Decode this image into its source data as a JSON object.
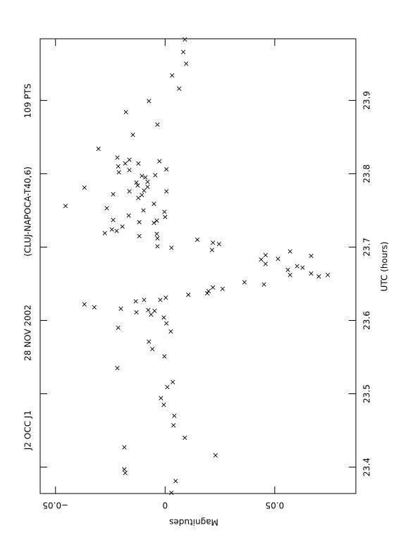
{
  "chart_data": {
    "type": "scatter",
    "title": [
      "J2 OCC J1",
      "28 NOV 2002",
      "(CLUJ-NAPOCA-T40,6)",
      "109 PTS"
    ],
    "x_label": "UTC (hours)",
    "y_label": "Magnitudes",
    "xlim": [
      23.364,
      23.984
    ],
    "xticks": [
      23.4,
      23.5,
      23.6,
      23.7,
      23.8,
      23.9
    ],
    "ylim": [
      -0.057,
      0.087
    ],
    "yticks": [
      {
        "value": -0.05,
        "label": "−0.05"
      },
      0,
      0.05
    ],
    "y_inverted": true,
    "color": "#000000",
    "x": [
      23.983,
      23.966,
      23.95,
      23.934,
      23.916,
      23.899,
      23.867,
      23.853,
      23.884,
      23.834,
      23.822,
      23.819,
      23.817,
      23.814,
      23.814,
      23.81,
      23.806,
      23.805,
      23.797,
      23.795,
      23.789,
      23.798,
      23.788,
      23.802,
      23.781,
      23.784,
      23.782,
      23.777,
      23.776,
      23.776,
      23.771,
      23.772,
      23.767,
      23.753,
      23.759,
      23.75,
      23.748,
      23.741,
      23.743,
      23.736,
      23.737,
      23.734,
      23.733,
      23.728,
      23.724,
      23.722,
      23.719,
      23.718,
      23.715,
      23.712,
      23.701,
      23.71,
      23.699,
      23.706,
      23.696,
      23.704,
      23.756,
      23.683,
      23.689,
      23.677,
      23.694,
      23.669,
      23.684,
      23.688,
      23.674,
      23.662,
      23.672,
      23.664,
      23.66,
      23.662,
      23.649,
      23.652,
      23.643,
      23.645,
      23.64,
      23.637,
      23.635,
      23.631,
      23.628,
      23.614,
      23.608,
      23.613,
      23.611,
      23.626,
      23.628,
      23.616,
      23.622,
      23.618,
      23.596,
      23.604,
      23.59,
      23.585,
      23.571,
      23.561,
      23.551,
      23.535,
      23.516,
      23.509,
      23.494,
      23.485,
      23.47,
      23.457,
      23.44,
      23.427,
      23.416,
      23.397,
      23.392,
      23.381,
      23.365
    ],
    "values": [
      0.009,
      0.0083,
      0.0096,
      0.0032,
      0.0064,
      -0.0074,
      -0.0035,
      -0.0147,
      -0.0179,
      -0.0304,
      -0.0218,
      -0.0163,
      -0.0026,
      -0.0182,
      -0.0122,
      -0.0214,
      0.0006,
      -0.0163,
      -0.0106,
      -0.009,
      -0.008,
      -0.0045,
      -0.0131,
      -0.0211,
      -0.0368,
      -0.0125,
      -0.008,
      -0.0096,
      -0.0163,
      0.0006,
      -0.0106,
      -0.0237,
      -0.0122,
      -0.0266,
      -0.0051,
      -0.0099,
      -0.0003,
      0.0,
      -0.0166,
      -0.0038,
      -0.0237,
      -0.0118,
      -0.0051,
      -0.0195,
      -0.0243,
      -0.0221,
      -0.0275,
      -0.0038,
      -0.0118,
      -0.0035,
      -0.0035,
      0.0147,
      0.0029,
      0.0218,
      0.0214,
      0.0246,
      -0.0454,
      0.0438,
      0.0458,
      0.0458,
      0.057,
      0.056,
      0.0515,
      0.0666,
      0.0602,
      0.057,
      0.0627,
      0.0666,
      0.0701,
      0.0742,
      0.0451,
      0.0362,
      0.0262,
      0.0218,
      0.0198,
      0.0192,
      0.0106,
      0.0003,
      -0.0022,
      -0.0077,
      -0.0064,
      -0.0048,
      -0.0131,
      -0.0134,
      -0.0096,
      -0.0202,
      -0.0368,
      -0.0323,
      0.0006,
      -0.0006,
      -0.0214,
      0.0026,
      -0.0074,
      -0.0058,
      -0.0003,
      -0.0218,
      0.0035,
      0.001,
      -0.0019,
      -0.0006,
      0.0042,
      0.0038,
      0.009,
      -0.0186,
      0.023,
      -0.0186,
      -0.0182,
      0.0048,
      0.0029
    ]
  }
}
